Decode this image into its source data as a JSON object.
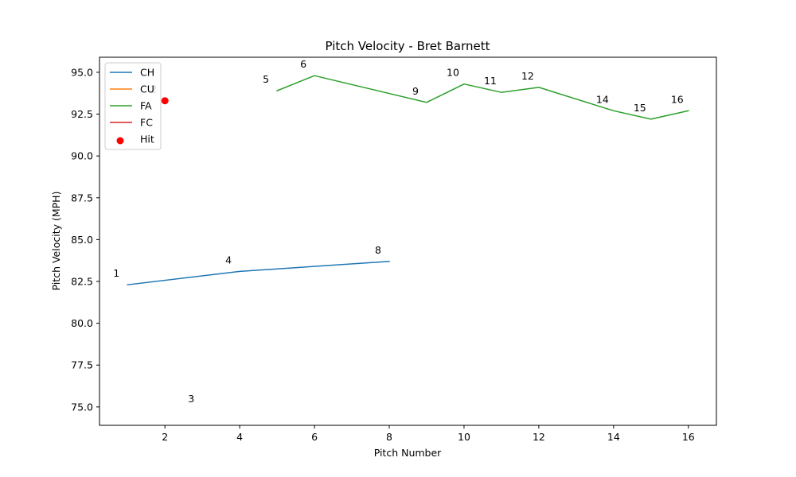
{
  "chart_data": {
    "type": "line",
    "title": "Pitch Velocity - Bret Barnett",
    "xlabel": "Pitch Number",
    "ylabel": "Pitch Velocity (MPH)",
    "xlim": [
      0.25,
      16.75
    ],
    "ylim": [
      73.9,
      95.9
    ],
    "xticks": [
      2,
      4,
      6,
      8,
      10,
      12,
      14,
      16
    ],
    "xtick_labels": [
      "2",
      "4",
      "6",
      "8",
      "10",
      "12",
      "14",
      "16"
    ],
    "yticks": [
      75.0,
      77.5,
      80.0,
      82.5,
      85.0,
      87.5,
      90.0,
      92.5,
      95.0
    ],
    "ytick_labels": [
      "75.0",
      "77.5",
      "80.0",
      "82.5",
      "85.0",
      "87.5",
      "90.0",
      "92.5",
      "95.0"
    ],
    "legend_position": "upper-left",
    "grid": false,
    "series": [
      {
        "name": "CH",
        "color": "#1f77b4",
        "points": [
          [
            1,
            82.3
          ],
          [
            4,
            83.1
          ],
          [
            8,
            83.7
          ]
        ]
      },
      {
        "name": "CU",
        "color": "#ff7f0e",
        "points": [
          [
            3,
            74.8
          ]
        ]
      },
      {
        "name": "FA",
        "color": "#2ca02c",
        "points": [
          [
            5,
            93.9
          ],
          [
            6,
            94.8
          ],
          [
            9,
            93.2
          ],
          [
            10,
            94.3
          ],
          [
            11,
            93.8
          ],
          [
            12,
            94.1
          ],
          [
            14,
            92.7
          ],
          [
            15,
            92.2
          ],
          [
            16,
            92.7
          ]
        ]
      },
      {
        "name": "FC",
        "color": "#d62728",
        "points": [
          [
            2,
            93.3
          ]
        ]
      }
    ],
    "hit_series": {
      "name": "Hit",
      "color": "#ff0000",
      "points": [
        [
          2,
          93.3
        ]
      ]
    },
    "annotations": [
      {
        "text": "1",
        "x": 1,
        "y": 82.3
      },
      {
        "text": "2",
        "x": 2,
        "y": 93.3
      },
      {
        "text": "3",
        "x": 3,
        "y": 74.8
      },
      {
        "text": "4",
        "x": 4,
        "y": 83.1
      },
      {
        "text": "5",
        "x": 5,
        "y": 93.9
      },
      {
        "text": "6",
        "x": 6,
        "y": 94.8
      },
      {
        "text": "8",
        "x": 8,
        "y": 83.7
      },
      {
        "text": "9",
        "x": 9,
        "y": 93.2
      },
      {
        "text": "10",
        "x": 10,
        "y": 94.3
      },
      {
        "text": "11",
        "x": 11,
        "y": 93.8
      },
      {
        "text": "12",
        "x": 12,
        "y": 94.1
      },
      {
        "text": "14",
        "x": 14,
        "y": 92.7
      },
      {
        "text": "15",
        "x": 15,
        "y": 92.2
      },
      {
        "text": "16",
        "x": 16,
        "y": 92.7
      }
    ]
  }
}
